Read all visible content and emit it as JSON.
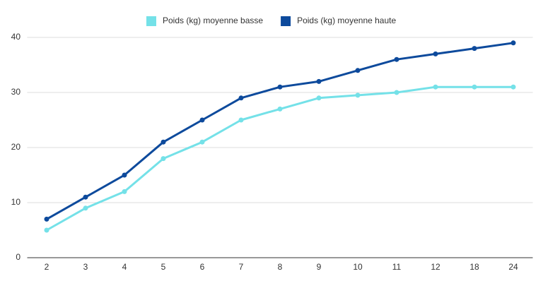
{
  "chart_data": {
    "type": "line",
    "categories": [
      "2",
      "3",
      "4",
      "5",
      "6",
      "7",
      "8",
      "9",
      "10",
      "11",
      "12",
      "18",
      "24"
    ],
    "series": [
      {
        "name": "Poids (kg) moyenne basse",
        "color": "#74e1e8",
        "values": [
          5,
          9,
          12,
          18,
          21,
          25,
          27,
          29,
          29.5,
          30,
          31,
          31,
          31
        ]
      },
      {
        "name": "Poids (kg) moyenne haute",
        "color": "#0d4a9c",
        "values": [
          7,
          11,
          15,
          21,
          25,
          29,
          31,
          32,
          34,
          36,
          37,
          38,
          39
        ]
      }
    ],
    "ylim": [
      0,
      40
    ],
    "yticks": [
      0,
      10,
      20,
      30,
      40
    ],
    "grid": true,
    "legend": "top"
  }
}
